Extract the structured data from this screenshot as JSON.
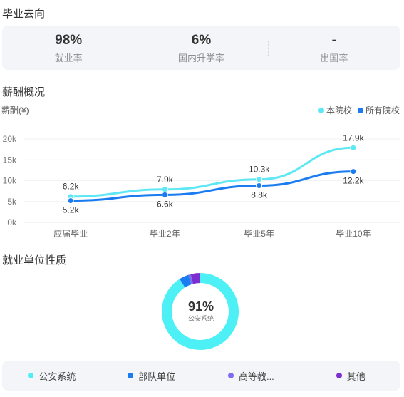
{
  "sections": {
    "destination": "毕业去向",
    "salary": "薪酬概况",
    "employer": "就业单位性质"
  },
  "stats": [
    {
      "value": "98%",
      "label": "就业率"
    },
    {
      "value": "6%",
      "label": "国内升学率"
    },
    {
      "value": "-",
      "label": "出国率"
    }
  ],
  "chart_data": [
    {
      "type": "line",
      "ylabel": "薪酬(¥)",
      "categories": [
        "应届毕业",
        "毕业2年",
        "毕业5年",
        "毕业10年"
      ],
      "y_ticks": [
        "0k",
        "5k",
        "10k",
        "15k",
        "20k"
      ],
      "ylim": [
        0,
        20
      ],
      "legend_position": "top-right",
      "grid": true,
      "series": [
        {
          "name": "本院校",
          "color": "#5ee7f5",
          "values": [
            6.2,
            7.9,
            10.3,
            17.9
          ],
          "labels": [
            "6.2k",
            "7.9k",
            "10.3k",
            "17.9k"
          ]
        },
        {
          "name": "所有院校",
          "color": "#1a7cf0",
          "values": [
            5.2,
            6.6,
            8.8,
            12.2
          ],
          "labels": [
            "5.2k",
            "6.6k",
            "8.8k",
            "12.2k"
          ]
        }
      ]
    },
    {
      "type": "pie",
      "center_value": "91%",
      "center_label": "公安系统",
      "slices": [
        {
          "name": "公安系统",
          "value": 91,
          "color": "#4cf0f5"
        },
        {
          "name": "部队单位",
          "value": 4,
          "color": "#1a7cf0"
        },
        {
          "name": "高等教...",
          "value": 1,
          "color": "#7b6cf0"
        },
        {
          "name": "其他",
          "value": 4,
          "color": "#7b2fd0"
        }
      ]
    }
  ]
}
